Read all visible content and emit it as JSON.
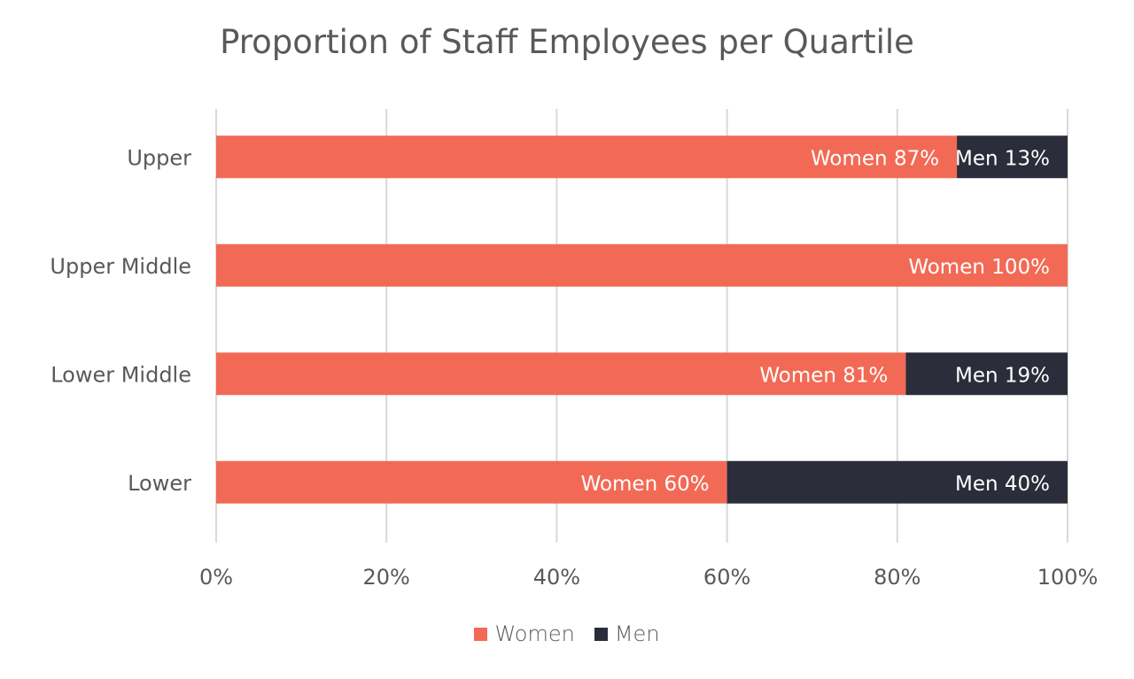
{
  "chart_data": {
    "type": "bar",
    "orientation": "horizontal",
    "stacked": true,
    "title": "Proportion of Staff Employees per Quartile",
    "categories": [
      "Upper",
      "Upper Middle",
      "Lower Middle",
      "Lower"
    ],
    "series": [
      {
        "name": "Women",
        "color": "#F26A55",
        "values": [
          87,
          100,
          81,
          60
        ],
        "labels": [
          "Women 87%",
          "Women 100%",
          "Women 81%",
          "Women 60%"
        ]
      },
      {
        "name": "Men",
        "color": "#2C2D3A",
        "values": [
          13,
          0,
          19,
          40
        ],
        "labels": [
          "Men 13%",
          "",
          "Men 19%",
          "Men 40%"
        ]
      }
    ],
    "xlim": [
      0,
      100
    ],
    "xticks": [
      "0%",
      "20%",
      "40%",
      "60%",
      "80%",
      "100%"
    ],
    "grid": true,
    "legend_position": "bottom"
  }
}
